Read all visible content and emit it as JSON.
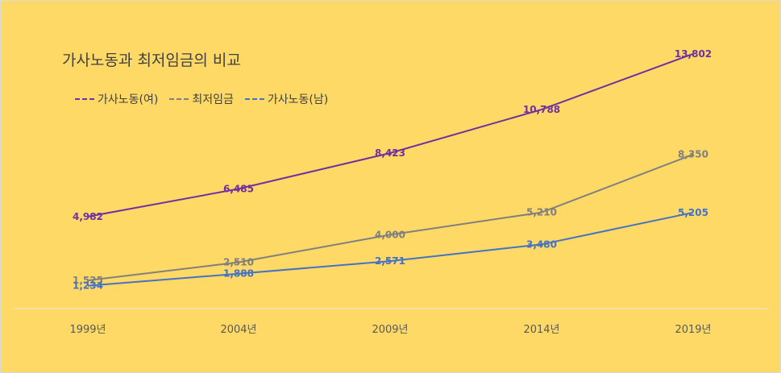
{
  "chart_data": {
    "type": "line",
    "title": "가사노동과 최저임금의 비교",
    "categories": [
      "1999년",
      "2004년",
      "2009년",
      "2014년",
      "2019년"
    ],
    "series": [
      {
        "name": "가사노동(여)",
        "values": [
          4982,
          6485,
          8423,
          10788,
          13802
        ],
        "labels": [
          "4,982",
          "6,485",
          "8,423",
          "10,788",
          "13,802"
        ],
        "color": "#7030a0",
        "label_color": "#7030a0"
      },
      {
        "name": "최저임금",
        "values": [
          1525,
          2510,
          4000,
          5210,
          8350
        ],
        "labels": [
          "1,525",
          "2,510",
          "4,000",
          "5,210",
          "8,350"
        ],
        "color": "#808080",
        "label_color": "#7f7f7f"
      },
      {
        "name": "가사노동(남)",
        "values": [
          1234,
          1888,
          2571,
          3480,
          5205
        ],
        "labels": [
          "1,234",
          "1,888",
          "2,571",
          "3,480",
          "5,205"
        ],
        "color": "#4472c4",
        "label_color": "#4472c4"
      }
    ],
    "ylim": [
      0,
      16500
    ],
    "grid": false,
    "legend_position": "top-left"
  }
}
